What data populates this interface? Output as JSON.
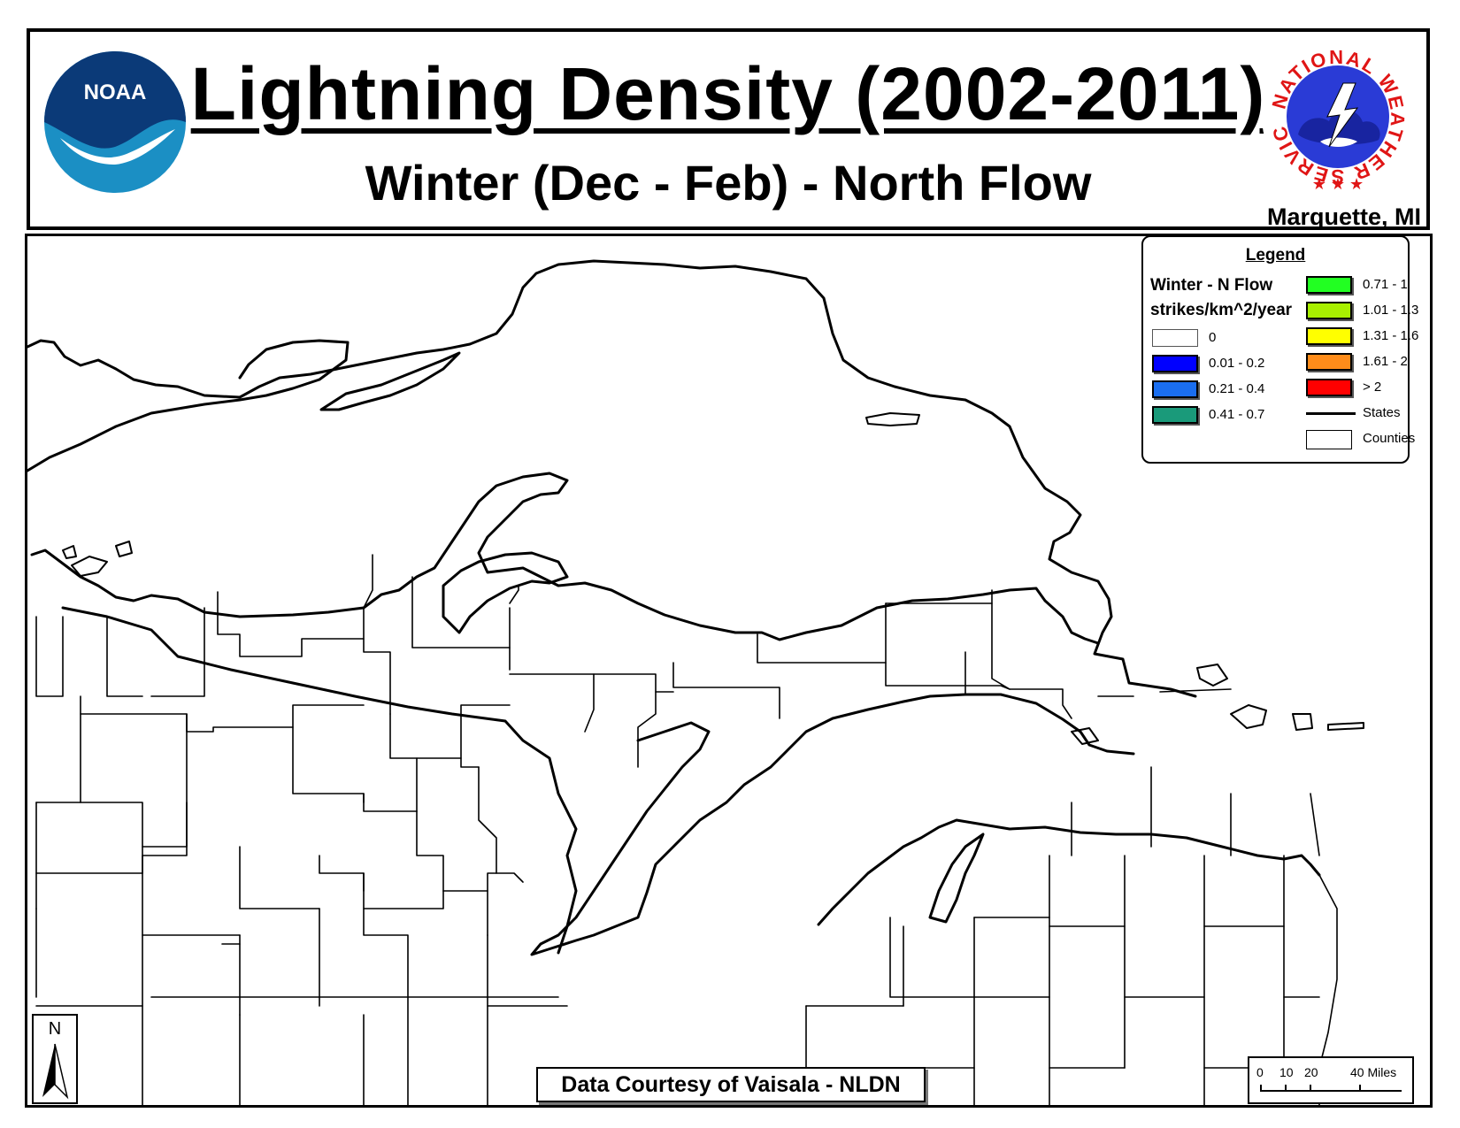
{
  "header": {
    "title": "Lightning Density (2002-2011)",
    "subtitle": "Winter (Dec - Feb) - North Flow",
    "office": "Marquette, MI",
    "noaa_logo_text": "NOAA",
    "nws_logo_text": "NATIONAL WEATHER SERVICE"
  },
  "legend": {
    "title": "Legend",
    "layer_name": "Winter - N Flow",
    "units": "strikes/km^2/year",
    "classes": [
      {
        "label": "0",
        "color": "#ffffff"
      },
      {
        "label": "0.01 - 0.2",
        "color": "#0000ff"
      },
      {
        "label": "0.21 - 0.4",
        "color": "#1a6ef0"
      },
      {
        "label": "0.41 - 0.7",
        "color": "#1a9a7a"
      },
      {
        "label": "0.71 - 1",
        "color": "#22ff22"
      },
      {
        "label": "1.01 - 1.3",
        "color": "#a8f000"
      },
      {
        "label": "1.31 - 1.6",
        "color": "#ffff00"
      },
      {
        "label": "1.61 - 2",
        "color": "#ff8c1a"
      },
      {
        "label": "> 2",
        "color": "#ff0000"
      }
    ],
    "states_label": "States",
    "counties_label": "Counties"
  },
  "footer": {
    "courtesy": "Data Courtesy of Vaisala - NLDN"
  },
  "north_arrow": {
    "letter": "N"
  },
  "scale_bar": {
    "ticks": [
      "0",
      "10",
      "20",
      "40 Miles"
    ]
  }
}
